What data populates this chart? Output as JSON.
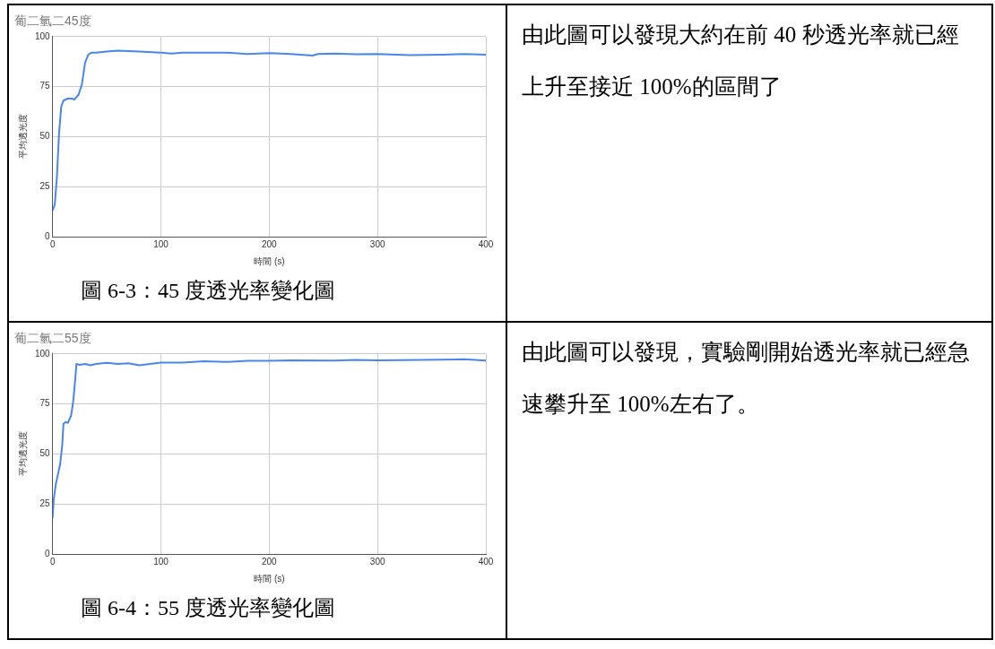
{
  "chart_data": [
    {
      "type": "line",
      "title": "葡二氫二45度",
      "xlabel": "時間 (s)",
      "ylabel": "平均透光度",
      "xlim": [
        0,
        400
      ],
      "xticks": [
        0,
        100,
        200,
        300,
        400
      ],
      "ylim": [
        0,
        100
      ],
      "yticks": [
        0,
        25,
        50,
        75,
        100
      ],
      "grid": true,
      "legend": false,
      "marker": "none",
      "line_style": "solid",
      "annotations": [
        "圖 6-3：45 度透光率變化圖"
      ],
      "series": [
        {
          "color": "#4a86e8",
          "x": [
            0,
            2,
            4,
            6,
            8,
            10,
            14,
            18,
            20,
            24,
            27,
            30,
            33,
            36,
            40,
            50,
            60,
            80,
            100,
            110,
            120,
            140,
            160,
            180,
            200,
            220,
            240,
            245,
            260,
            280,
            300,
            330,
            360,
            380,
            400
          ],
          "values": [
            13,
            16,
            30,
            52,
            65,
            68,
            69,
            69,
            68.5,
            71,
            76,
            87,
            91,
            92,
            92,
            92.5,
            93,
            92.5,
            92,
            91.5,
            92,
            92,
            92,
            91.3,
            91.7,
            91.3,
            90.5,
            91.3,
            91.5,
            91.2,
            91.3,
            90.7,
            91,
            91.3,
            91
          ]
        }
      ]
    },
    {
      "type": "other",
      "annotations": [
        "由此圖可以發現大約在前 40 秒透光率就已經上升至接近 100%的區間了"
      ]
    },
    {
      "type": "line",
      "title": "葡二氫二55度",
      "xlabel": "時間 (s)",
      "ylabel": "平均透光度",
      "xlim": [
        0,
        400
      ],
      "xticks": [
        0,
        100,
        200,
        300,
        400
      ],
      "ylim": [
        0,
        100
      ],
      "yticks": [
        0,
        25,
        50,
        75,
        100
      ],
      "grid": true,
      "legend": false,
      "marker": "none",
      "line_style": "solid",
      "annotations": [
        "圖 6-4：55 度透光率變化圖"
      ],
      "series": [
        {
          "color": "#4a86e8",
          "x": [
            0,
            1,
            3,
            5,
            7,
            9,
            10,
            12,
            14,
            17,
            19,
            21,
            22,
            25,
            30,
            35,
            40,
            50,
            60,
            70,
            80,
            90,
            100,
            120,
            140,
            160,
            180,
            200,
            220,
            260,
            280,
            300,
            340,
            380,
            400
          ],
          "values": [
            18,
            27,
            35,
            40,
            45,
            55,
            65,
            66,
            65.5,
            69,
            76,
            88,
            95,
            94.5,
            95,
            94.3,
            95,
            95.5,
            95,
            95.3,
            94.3,
            95,
            95.7,
            95.7,
            96.3,
            96,
            96.5,
            96.5,
            96.8,
            96.7,
            97,
            96.8,
            97,
            97.3,
            96.7
          ]
        }
      ]
    },
    {
      "type": "other",
      "annotations": [
        "由此圖可以發現，實驗剛開始透光率就已經急速攀升至 100%左右了。"
      ]
    }
  ]
}
